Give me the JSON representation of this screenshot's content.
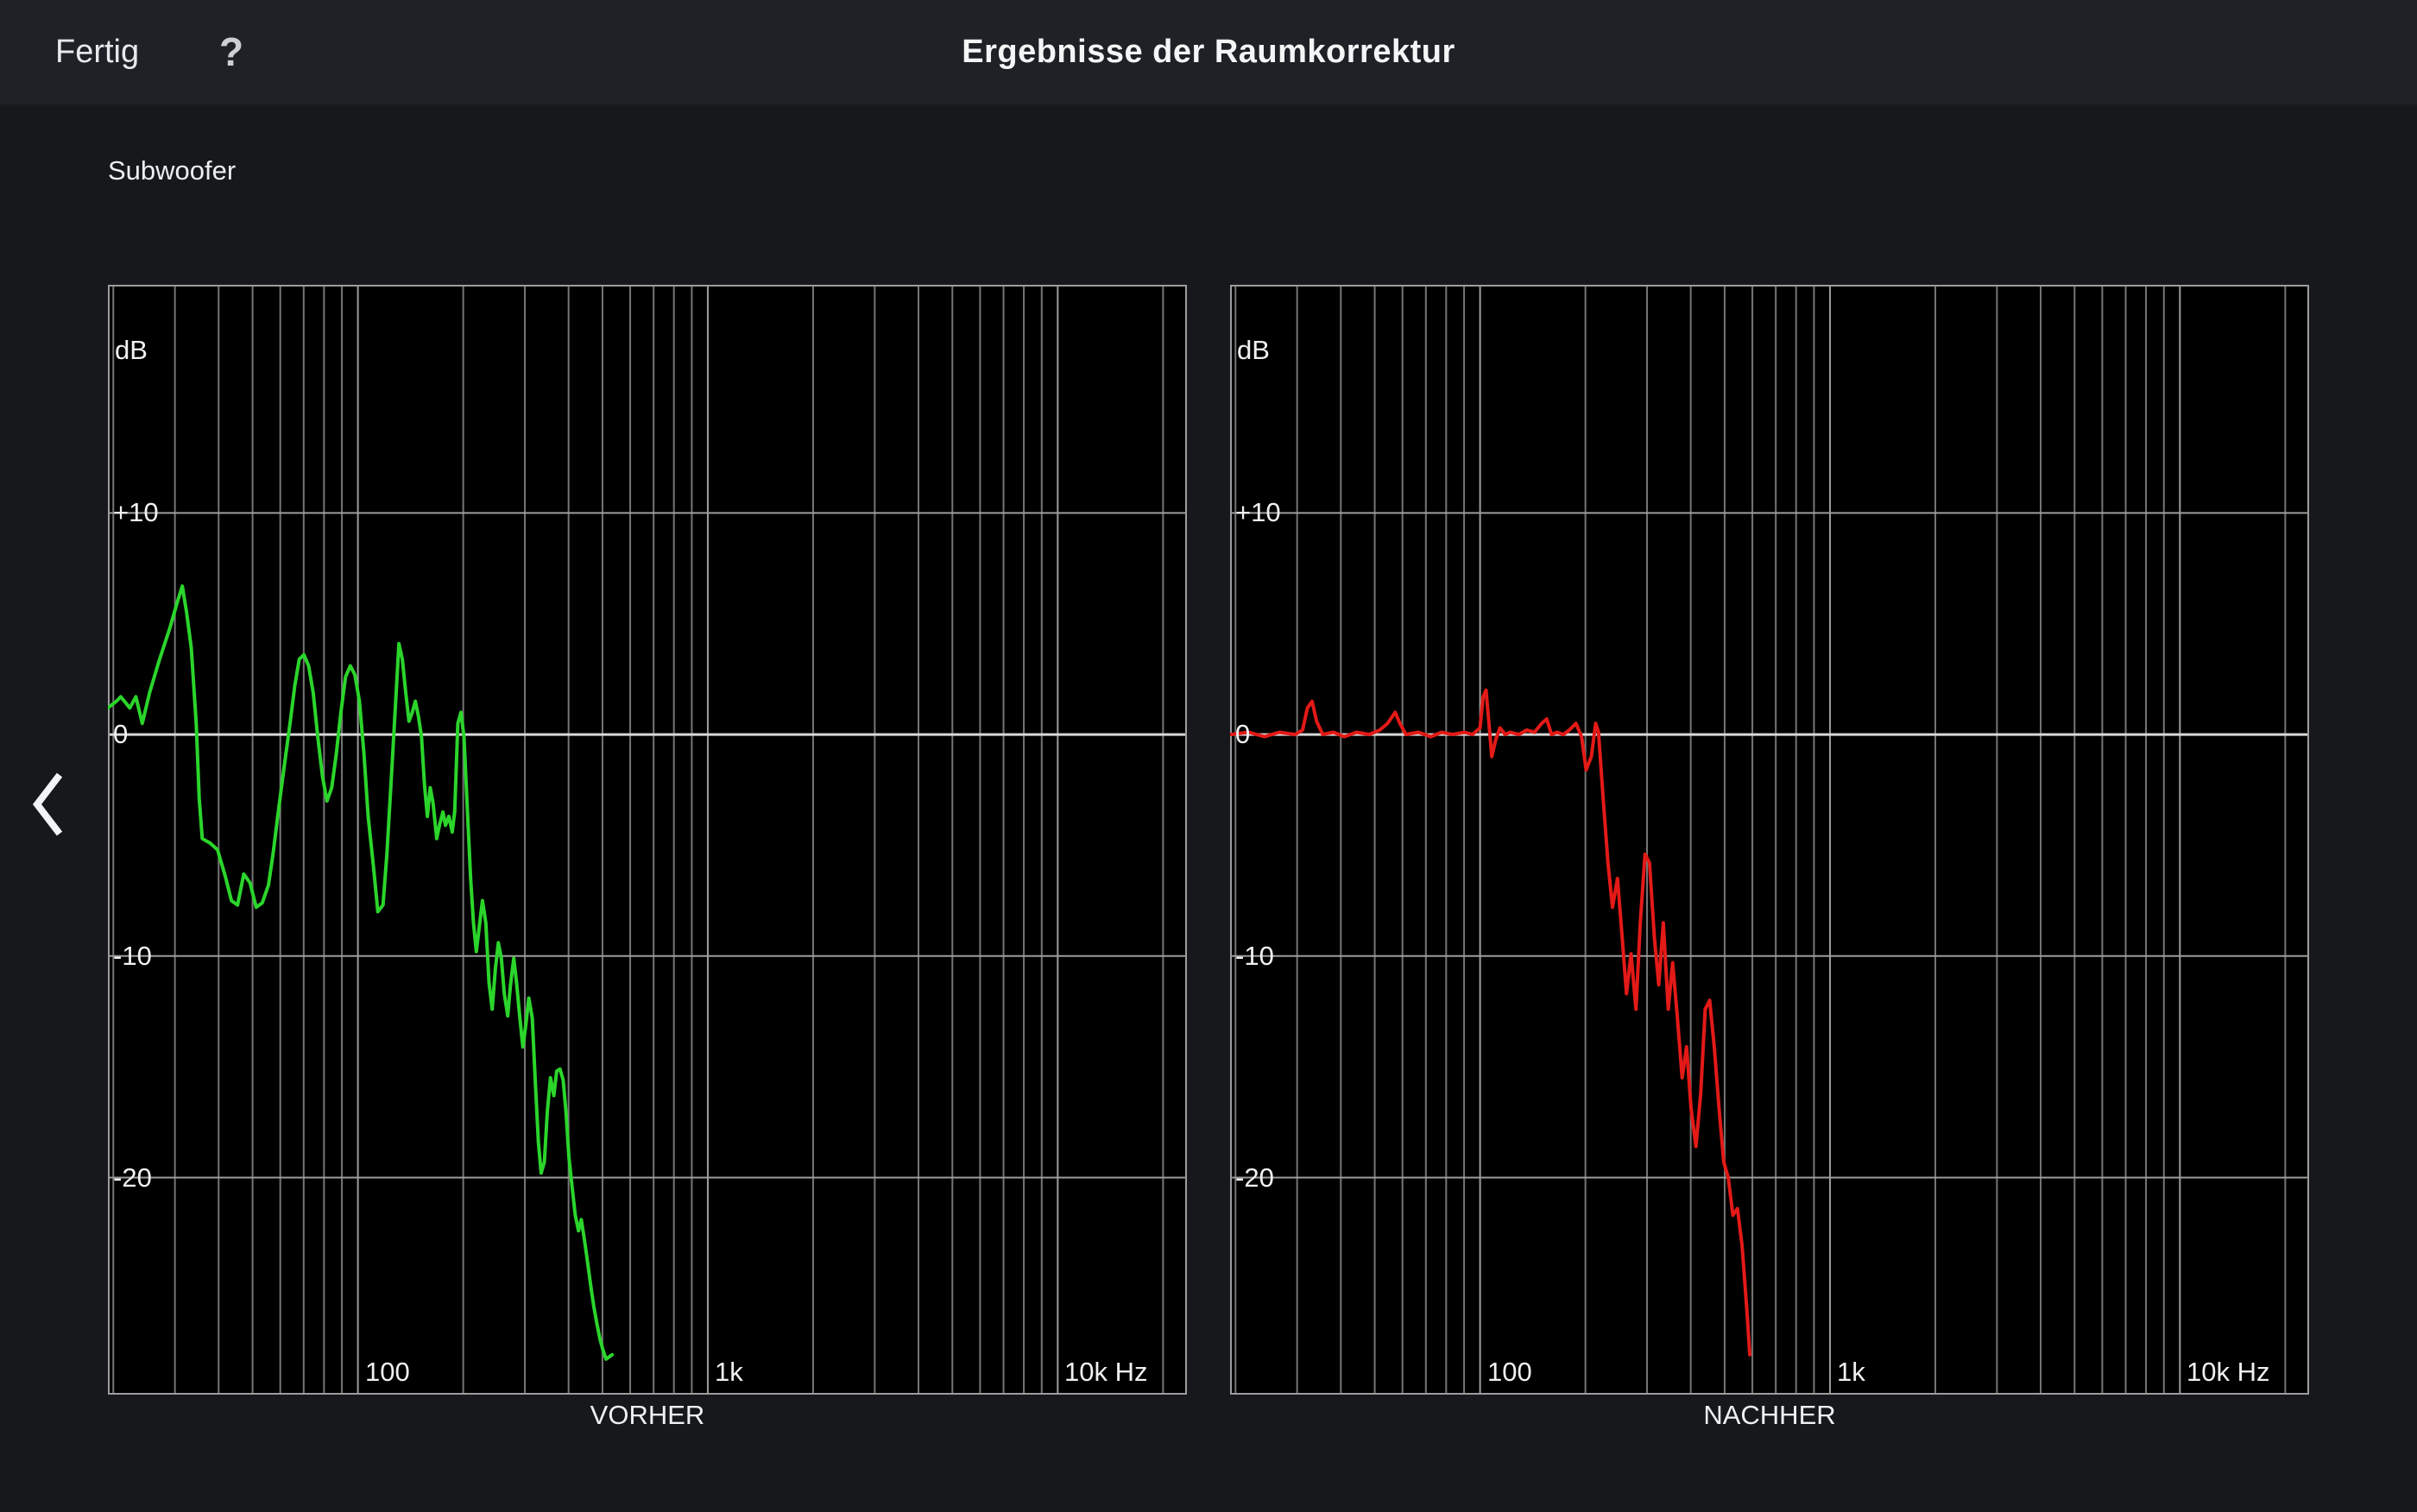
{
  "header": {
    "done_label": "Fertig",
    "help_label": "?",
    "title": "Ergebnisse der Raumkorrektur"
  },
  "speaker_label": "Subwoofer",
  "nav": {
    "back_icon": "chevron-left"
  },
  "chart_data": [
    {
      "type": "line",
      "title": "VORHER",
      "ylabel": "dB",
      "xlabel": "Hz",
      "xscale": "log",
      "xlim": [
        19.3,
        23400
      ],
      "ylim": [
        -29.8,
        20.3
      ],
      "y_grid": [
        10,
        0,
        -10,
        -20
      ],
      "y_tick_labels": [
        "+10",
        "0",
        "-10",
        "-20"
      ],
      "x_major_ticks": [
        100,
        1000,
        10000
      ],
      "x_tick_labels": [
        "100",
        "1k",
        "10k Hz"
      ],
      "grid": true,
      "legend": "none",
      "background": "#000000",
      "line_color": "#2bd52b",
      "grid_minor_color": "#757575",
      "grid_major_color": "#9d9d9d",
      "zero_line_color": "#d9d9d9",
      "border_color": "#9d9d9d",
      "series": [
        {
          "name": "VORHER",
          "points": [
            [
              19.3,
              1.2
            ],
            [
              20.4,
              1.5
            ],
            [
              21,
              1.7
            ],
            [
              22.3,
              1.2
            ],
            [
              23.2,
              1.7
            ],
            [
              24.2,
              0.5
            ],
            [
              25.4,
              1.9
            ],
            [
              27,
              3.3
            ],
            [
              29,
              4.8
            ],
            [
              30.5,
              6
            ],
            [
              31.5,
              6.7
            ],
            [
              32.4,
              5.5
            ],
            [
              33.4,
              3.9
            ],
            [
              34.5,
              0.5
            ],
            [
              35.2,
              -2.9
            ],
            [
              35.9,
              -4.7
            ],
            [
              37.8,
              -4.9
            ],
            [
              39.7,
              -5.2
            ],
            [
              41.8,
              -6.4
            ],
            [
              43.5,
              -7.5
            ],
            [
              45.3,
              -7.7
            ],
            [
              47.2,
              -6.3
            ],
            [
              49.2,
              -6.7
            ],
            [
              51.2,
              -7.8
            ],
            [
              53.3,
              -7.6
            ],
            [
              55.5,
              -6.8
            ],
            [
              57.2,
              -5.4
            ],
            [
              59,
              -3.7
            ],
            [
              61.4,
              -1.6
            ],
            [
              64,
              0.5
            ],
            [
              66,
              2.2
            ],
            [
              68,
              3.4
            ],
            [
              70.1,
              3.6
            ],
            [
              72.3,
              3.1
            ],
            [
              74.5,
              1.9
            ],
            [
              76.8,
              -0.1
            ],
            [
              79.2,
              -1.9
            ],
            [
              81.6,
              -3
            ],
            [
              84.2,
              -2.4
            ],
            [
              86.7,
              -0.9
            ],
            [
              89.4,
              1
            ],
            [
              92.2,
              2.6
            ],
            [
              95.1,
              3.1
            ],
            [
              98,
              2.7
            ],
            [
              101,
              1.5
            ],
            [
              104,
              -0.8
            ],
            [
              107,
              -3.7
            ],
            [
              111,
              -6.1
            ],
            [
              114,
              -8
            ],
            [
              118,
              -7.7
            ],
            [
              121,
              -5.4
            ],
            [
              125,
              -1.6
            ],
            [
              129,
              2.2
            ],
            [
              131,
              4.1
            ],
            [
              134,
              3.4
            ],
            [
              137,
              1.9
            ],
            [
              140,
              0.6
            ],
            [
              143,
              1
            ],
            [
              146,
              1.5
            ],
            [
              149,
              0.8
            ],
            [
              152,
              -0.1
            ],
            [
              155,
              -2.3
            ],
            [
              158,
              -3.7
            ],
            [
              161,
              -2.4
            ],
            [
              164,
              -3.1
            ],
            [
              168,
              -4.7
            ],
            [
              171,
              -4.1
            ],
            [
              175,
              -3.5
            ],
            [
              178,
              -4.1
            ],
            [
              182,
              -3.7
            ],
            [
              186,
              -4.4
            ],
            [
              189,
              -3.5
            ],
            [
              193,
              0.5
            ],
            [
              197,
              1
            ],
            [
              201,
              -0.1
            ],
            [
              206,
              -3.7
            ],
            [
              210,
              -6.5
            ],
            [
              214,
              -8.5
            ],
            [
              218,
              -9.8
            ],
            [
              223,
              -8.5
            ],
            [
              227,
              -7.5
            ],
            [
              232,
              -8.5
            ],
            [
              237,
              -11.2
            ],
            [
              242,
              -12.4
            ],
            [
              247,
              -10.6
            ],
            [
              252,
              -9.4
            ],
            [
              257,
              -10.1
            ],
            [
              262,
              -11.7
            ],
            [
              268,
              -12.7
            ],
            [
              273,
              -11.3
            ],
            [
              279,
              -10.1
            ],
            [
              284,
              -11.2
            ],
            [
              290,
              -12.7
            ],
            [
              296,
              -14.1
            ],
            [
              302,
              -13.1
            ],
            [
              308,
              -11.9
            ],
            [
              315,
              -12.8
            ],
            [
              321,
              -15.5
            ],
            [
              328,
              -18.4
            ],
            [
              334,
              -19.8
            ],
            [
              341,
              -19.3
            ],
            [
              348,
              -17
            ],
            [
              355,
              -15.5
            ],
            [
              363,
              -16.3
            ],
            [
              370,
              -15.2
            ],
            [
              378,
              -15.1
            ],
            [
              386,
              -15.6
            ],
            [
              393,
              -17
            ],
            [
              401,
              -19.1
            ],
            [
              410,
              -20.5
            ],
            [
              418,
              -21.7
            ],
            [
              427,
              -22.4
            ],
            [
              435,
              -21.9
            ],
            [
              444,
              -22.8
            ],
            [
              453,
              -23.8
            ],
            [
              463,
              -24.9
            ],
            [
              472,
              -25.8
            ],
            [
              482,
              -26.6
            ],
            [
              492,
              -27.3
            ],
            [
              502,
              -27.8
            ],
            [
              512,
              -28.2
            ],
            [
              522,
              -28.1
            ],
            [
              533,
              -28
            ]
          ]
        }
      ]
    },
    {
      "type": "line",
      "title": "NACHHER",
      "ylabel": "dB",
      "xlabel": "Hz",
      "xscale": "log",
      "xlim": [
        19.3,
        23400
      ],
      "ylim": [
        -29.8,
        20.3
      ],
      "y_grid": [
        10,
        0,
        -10,
        -20
      ],
      "y_tick_labels": [
        "+10",
        "0",
        "-10",
        "-20"
      ],
      "x_major_ticks": [
        100,
        1000,
        10000
      ],
      "x_tick_labels": [
        "100",
        "1k",
        "10k Hz"
      ],
      "grid": true,
      "legend": "none",
      "background": "#000000",
      "line_color": "#e31a17",
      "grid_minor_color": "#757575",
      "grid_major_color": "#9d9d9d",
      "zero_line_color": "#d9d9d9",
      "border_color": "#9d9d9d",
      "series": [
        {
          "name": "NACHHER",
          "points": [
            [
              19.3,
              0
            ],
            [
              21.8,
              0.1
            ],
            [
              24.2,
              -0.1
            ],
            [
              26.7,
              0.1
            ],
            [
              29.6,
              0
            ],
            [
              31.1,
              0.2
            ],
            [
              32.1,
              1.2
            ],
            [
              33.1,
              1.5
            ],
            [
              34.1,
              0.6
            ],
            [
              35.5,
              0
            ],
            [
              38.1,
              0.1
            ],
            [
              40.9,
              -0.1
            ],
            [
              44.4,
              0.1
            ],
            [
              48.2,
              0
            ],
            [
              51.7,
              0.2
            ],
            [
              54.4,
              0.5
            ],
            [
              56.1,
              0.8
            ],
            [
              57.2,
              1
            ],
            [
              59,
              0.5
            ],
            [
              61.4,
              0
            ],
            [
              66.6,
              0.1
            ],
            [
              72.3,
              -0.1
            ],
            [
              77.6,
              0.1
            ],
            [
              83.3,
              0
            ],
            [
              90.3,
              0.1
            ],
            [
              95.1,
              0
            ],
            [
              100,
              0.3
            ],
            [
              102,
              1.7
            ],
            [
              104,
              2
            ],
            [
              106,
              0.5
            ],
            [
              108,
              -1
            ],
            [
              111,
              -0.2
            ],
            [
              114,
              0.3
            ],
            [
              118,
              0
            ],
            [
              122,
              0.1
            ],
            [
              129,
              0
            ],
            [
              136,
              0.2
            ],
            [
              143,
              0.1
            ],
            [
              150,
              0.5
            ],
            [
              155,
              0.7
            ],
            [
              160,
              0
            ],
            [
              166,
              0.1
            ],
            [
              173,
              0
            ],
            [
              180,
              0.2
            ],
            [
              188,
              0.5
            ],
            [
              195,
              -0.1
            ],
            [
              201,
              -1.6
            ],
            [
              208,
              -1
            ],
            [
              214,
              0.5
            ],
            [
              218,
              0.1
            ],
            [
              225,
              -3
            ],
            [
              232,
              -5.8
            ],
            [
              239,
              -7.8
            ],
            [
              247,
              -6.5
            ],
            [
              254,
              -8.9
            ],
            [
              262,
              -11.7
            ],
            [
              270,
              -9.9
            ],
            [
              279,
              -12.4
            ],
            [
              287,
              -8.5
            ],
            [
              296,
              -5.4
            ],
            [
              305,
              -5.8
            ],
            [
              315,
              -9.2
            ],
            [
              324,
              -11.3
            ],
            [
              334,
              -8.5
            ],
            [
              345,
              -12.4
            ],
            [
              355,
              -10.3
            ],
            [
              366,
              -12.7
            ],
            [
              378,
              -15.5
            ],
            [
              389,
              -14.1
            ],
            [
              401,
              -16.9
            ],
            [
              414,
              -18.6
            ],
            [
              427,
              -16.2
            ],
            [
              440,
              -12.4
            ],
            [
              453,
              -12
            ],
            [
              467,
              -14.1
            ],
            [
              482,
              -16.9
            ],
            [
              497,
              -19.3
            ],
            [
              512,
              -20
            ],
            [
              528,
              -21.7
            ],
            [
              544,
              -21.4
            ],
            [
              561,
              -23.1
            ],
            [
              578,
              -25.9
            ],
            [
              590,
              -28
            ]
          ]
        }
      ]
    }
  ]
}
